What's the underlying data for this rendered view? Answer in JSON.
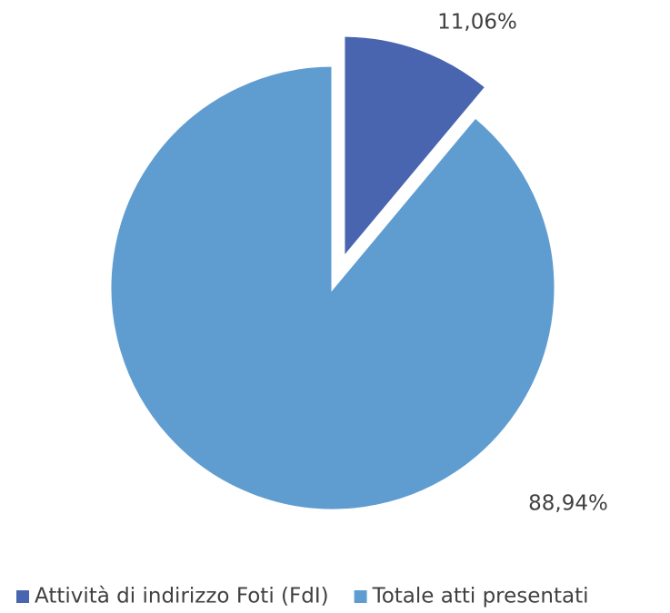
{
  "chart_data": {
    "type": "pie",
    "categories": [
      "Attività di indirizzo Foti (FdI)",
      "Totale atti presentati"
    ],
    "values": [
      11.06,
      88.94
    ],
    "value_labels": [
      "11,06%",
      "88,94%"
    ],
    "colors": [
      "#4a65b0",
      "#5f9dd1"
    ],
    "exploded": [
      true,
      false
    ],
    "legend": "bottom"
  }
}
